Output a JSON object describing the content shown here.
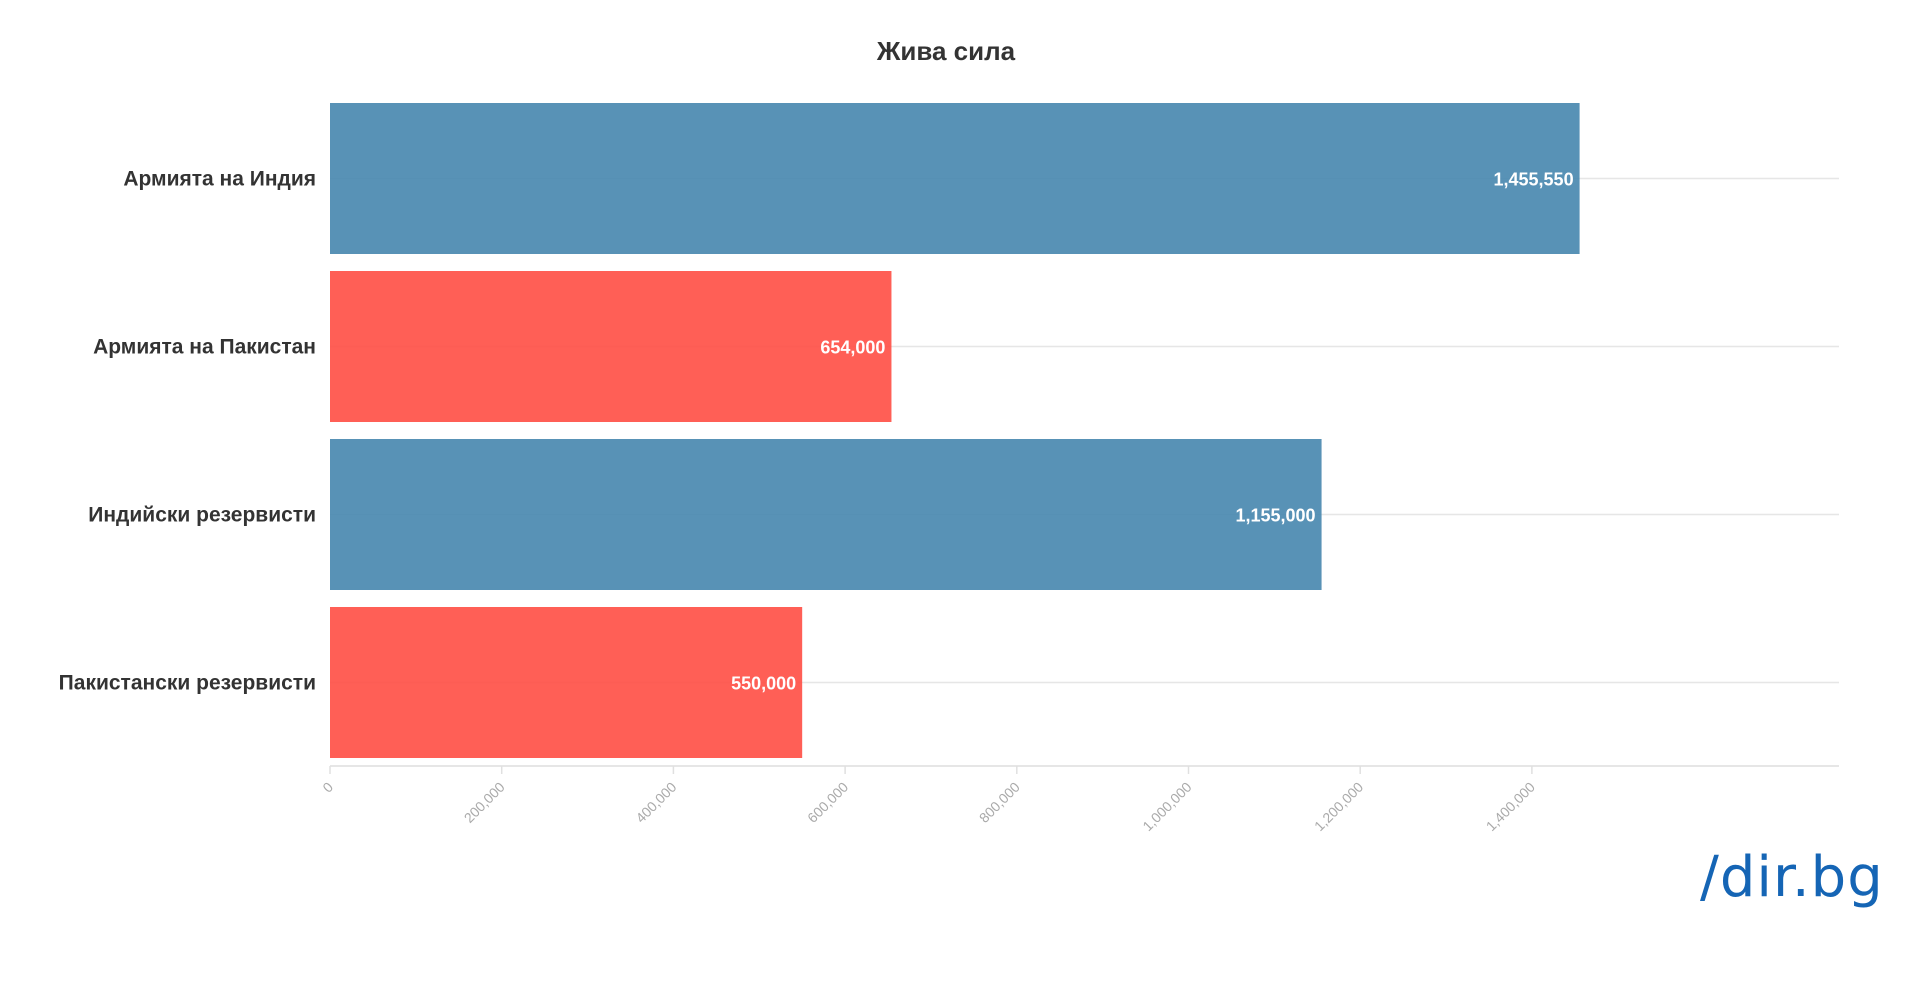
{
  "chart_data": {
    "type": "bar",
    "orientation": "horizontal",
    "title": "Жива сила",
    "categories": [
      "Армията на Индия",
      "Армията на Пакистан",
      "Индийски резервисти",
      "Пакистански резервисти"
    ],
    "values": [
      1455550,
      654000,
      1155000,
      550000
    ],
    "value_labels": [
      "1,455,550",
      "654,000",
      "1,155,000",
      "550,000"
    ],
    "colors": [
      "#4a89b0",
      "#ff5148",
      "#4a89b0",
      "#ff5148"
    ],
    "xlim": [
      0,
      1500000
    ],
    "xticks": [
      0,
      200000,
      400000,
      600000,
      800000,
      1000000,
      1200000,
      1400000
    ],
    "xtick_labels": [
      "0",
      "200,000",
      "400,000",
      "600,000",
      "800,000",
      "1,000,000",
      "1,200,000",
      "1,400,000"
    ],
    "xlabel": "",
    "ylabel": "",
    "grid": true
  },
  "branding": {
    "logo": "/dir.bg"
  }
}
